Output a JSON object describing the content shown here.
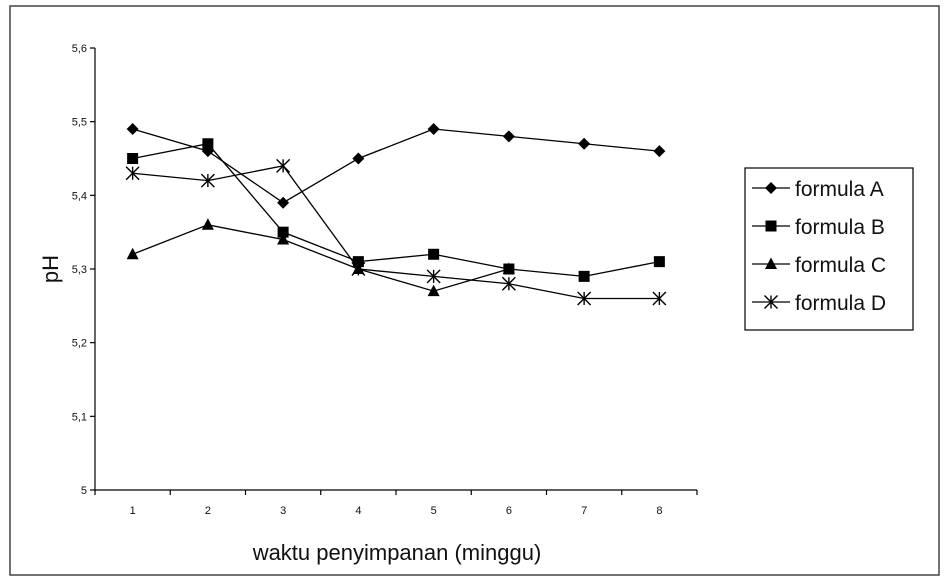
{
  "chart_data": {
    "type": "line",
    "title": "",
    "xlabel": "waktu penyimpanan (minggu)",
    "ylabel": "pH",
    "categories": [
      "1",
      "2",
      "3",
      "4",
      "5",
      "6",
      "7",
      "8"
    ],
    "ylim": [
      5.0,
      5.6
    ],
    "yticks": [
      "5",
      "5,1",
      "5,2",
      "5,3",
      "5,4",
      "5,5",
      "5,6"
    ],
    "grid": false,
    "legend_position": "right",
    "series": [
      {
        "name": "formula A",
        "marker": "diamond",
        "values": [
          5.49,
          5.46,
          5.39,
          5.45,
          5.49,
          5.48,
          5.47,
          5.46
        ]
      },
      {
        "name": "formula B",
        "marker": "square",
        "values": [
          5.45,
          5.47,
          5.35,
          5.31,
          5.32,
          5.3,
          5.29,
          5.31
        ]
      },
      {
        "name": "formula C",
        "marker": "triangle",
        "values": [
          5.32,
          5.36,
          5.34,
          5.3,
          5.27,
          5.3,
          null,
          null
        ]
      },
      {
        "name": "formula D",
        "marker": "asterisk",
        "values": [
          5.43,
          5.42,
          5.44,
          5.3,
          5.29,
          5.28,
          5.26,
          5.26
        ]
      }
    ],
    "line_color": "#000000"
  }
}
